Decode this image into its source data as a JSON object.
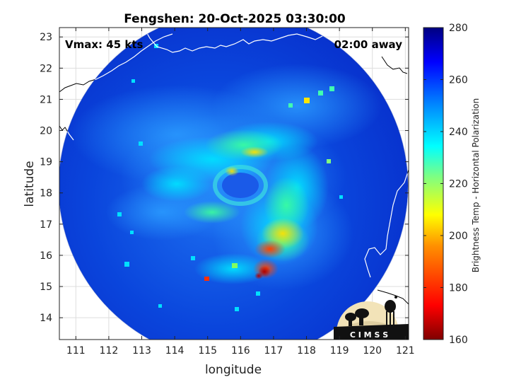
{
  "title": "Fengshen: 20-Oct-2025 03:30:00",
  "vmax_label": "Vmax: 45 kts",
  "away_label": "02:00 away",
  "xlabel": "longitude",
  "ylabel": "latitude",
  "colorbar_label": "Brightness Temp - Horizontal Polarization",
  "logo_text": "C I M S S",
  "chart_data": {
    "type": "heatmap",
    "title": "Fengshen: 20-Oct-2025 03:30:00",
    "xlabel": "longitude",
    "ylabel": "latitude",
    "xlim": [
      110.5,
      121.1
    ],
    "ylim": [
      13.3,
      23.3
    ],
    "x_ticks": [
      111,
      112,
      113,
      114,
      115,
      116,
      117,
      118,
      119,
      120,
      121
    ],
    "y_ticks": [
      14,
      15,
      16,
      17,
      18,
      19,
      20,
      21,
      22,
      23
    ],
    "colorbar": {
      "label": "Brightness Temp - Horizontal Polarization",
      "range": [
        160,
        280
      ],
      "ticks": [
        160,
        180,
        200,
        220,
        240,
        260,
        280
      ],
      "colormap": [
        "#800000",
        "#ff0000",
        "#ff8000",
        "#ffff00",
        "#80ff80",
        "#00ffff",
        "#0080ff",
        "#0000ff",
        "#000080"
      ]
    },
    "swath": {
      "center_lon": 115.8,
      "center_lat": 18.4,
      "radius_deg_lon": 5.35,
      "radius_deg_lat": 4.95
    },
    "storm_center": {
      "lon": 116.2,
      "lat": 18.3
    },
    "annotations": [
      "Vmax: 45 kts",
      "02:00 away"
    ],
    "grid": true
  }
}
